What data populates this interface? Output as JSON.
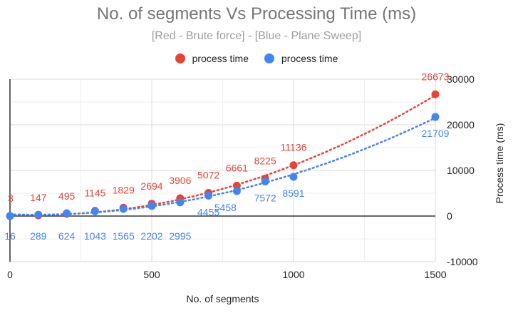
{
  "chart_data": {
    "type": "scatter",
    "title": "No. of segments Vs Processing Time (ms)",
    "subtitle": "[Red - Brute force] - [Blue - Plane Sweep]",
    "xlabel": "No. of segments",
    "ylabel": "Process time (ms)",
    "xlim": [
      0,
      1500
    ],
    "ylim": [
      -10000,
      30000
    ],
    "x_ticks": [
      "0",
      "500",
      "1000",
      "1500"
    ],
    "y_ticks": [
      "-10000",
      "0",
      "10000",
      "20000",
      "30000"
    ],
    "x_tick_values": [
      0,
      500,
      1000,
      1500
    ],
    "y_tick_values": [
      -10000,
      0,
      10000,
      20000,
      30000
    ],
    "trendline": "polynomial, dotted",
    "series": [
      {
        "name": "process time",
        "color": "#ea4335",
        "x": [
          0,
          100,
          200,
          300,
          400,
          500,
          600,
          700,
          800,
          900,
          1000,
          1500
        ],
        "values": [
          3,
          147,
          495,
          1145,
          1829,
          2694,
          3906,
          5072,
          6661,
          8225,
          11136,
          26673
        ],
        "labels": [
          "3",
          "147",
          "495",
          "1145",
          "1829",
          "2694",
          "3906",
          "5072",
          "6661",
          "8225",
          "11136",
          "26673"
        ]
      },
      {
        "name": "process time",
        "color": "#4285f4",
        "x": [
          0,
          100,
          200,
          300,
          400,
          500,
          600,
          700,
          800,
          900,
          1000,
          1500
        ],
        "values": [
          16,
          289,
          624,
          1043,
          1565,
          2202,
          2995,
          4455,
          5458,
          7572,
          8591,
          21709
        ],
        "labels": [
          "16",
          "289",
          "624",
          "1043",
          "1565",
          "2202",
          "2995",
          "4455",
          "5458",
          "7572",
          "8591",
          "21709"
        ]
      }
    ]
  }
}
